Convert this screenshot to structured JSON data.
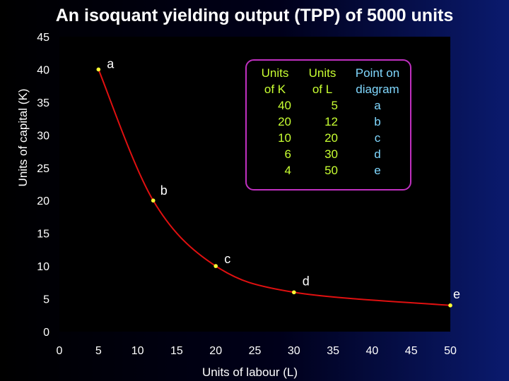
{
  "title": "An isoquant yielding output (TPP) of 5000 units",
  "chart_data": {
    "type": "line",
    "title": "An isoquant yielding output (TPP) of 5000 units",
    "xlabel": "Units of labour (L)",
    "ylabel": "Units of capital (K)",
    "xlim": [
      0,
      50
    ],
    "ylim": [
      0,
      45
    ],
    "xticks": [
      0,
      5,
      10,
      15,
      20,
      25,
      30,
      35,
      40,
      45,
      50
    ],
    "yticks": [
      0,
      5,
      10,
      15,
      20,
      25,
      30,
      35,
      40,
      45
    ],
    "grid": false,
    "series": [
      {
        "x": [
          5,
          12,
          20,
          30,
          50
        ],
        "y": [
          40,
          20,
          10,
          6,
          4
        ],
        "labels": [
          "a",
          "b",
          "c",
          "d",
          "e"
        ]
      }
    ],
    "colors": {
      "curve": "#e01010",
      "points": "#ffff33",
      "plot_bg": "#000000"
    }
  },
  "table": {
    "headers": [
      [
        "Units",
        "of K"
      ],
      [
        "Units",
        "of L"
      ],
      [
        "Point on",
        "diagram"
      ]
    ],
    "k": [
      "40",
      "20",
      "10",
      "6",
      "4"
    ],
    "l": [
      "5",
      "12",
      "20",
      "30",
      "50"
    ],
    "points": [
      "a",
      "b",
      "c",
      "d",
      "e"
    ]
  }
}
